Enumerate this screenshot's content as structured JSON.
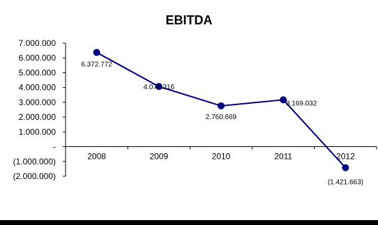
{
  "chart_data": {
    "type": "line",
    "title": "EBITDA",
    "categories": [
      "2008",
      "2009",
      "2010",
      "2011",
      "2012"
    ],
    "values": [
      6372772,
      4070316,
      2760669,
      3169032,
      -1421663
    ],
    "data_labels": [
      "6.372.772",
      "4.070.316",
      "2.760.669",
      "3.169.032",
      "(1.421.663)"
    ],
    "ylim": [
      -2000000,
      7000000
    ],
    "yticks": [
      7000000,
      6000000,
      5000000,
      4000000,
      3000000,
      2000000,
      1000000,
      0,
      -1000000,
      -2000000
    ],
    "ytick_labels": [
      "7.000.000",
      "6.000.000",
      "5.000.000",
      "4.000.000",
      "3.000.000",
      "2.000.000",
      "1.000.000",
      "-",
      "(1.000.000)",
      "(2.000.000)"
    ],
    "grid": false,
    "legend": "none",
    "series_color": "#000080",
    "axis_color": "#000000"
  }
}
